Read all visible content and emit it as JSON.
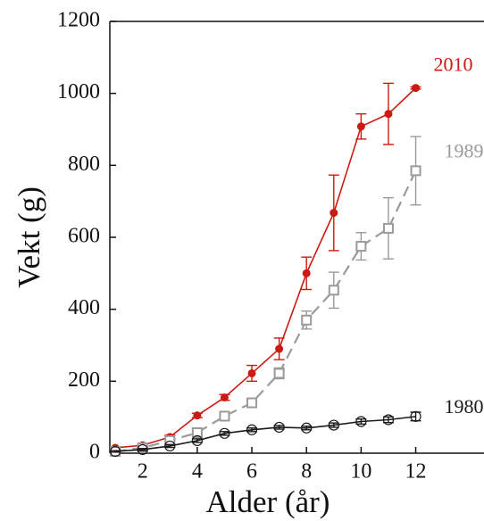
{
  "chart_data": {
    "type": "line",
    "x_label": "Alder (år)",
    "y_label": "Vekt (g)",
    "x": [
      1,
      2,
      3,
      4,
      5,
      6,
      7,
      8,
      9,
      10,
      11,
      12
    ],
    "series": [
      {
        "name": "2010",
        "color": "#cc1a12",
        "marker": "filled-circle",
        "dash": false,
        "values": [
          15,
          22,
          45,
          105,
          155,
          222,
          290,
          500,
          668,
          908,
          943,
          1015
        ],
        "errors": [
          3,
          4,
          5,
          6,
          8,
          22,
          30,
          45,
          105,
          35,
          85,
          3
        ]
      },
      {
        "name": "1989",
        "color": "#9a9a9a",
        "marker": "open-square",
        "dash": true,
        "values": [
          5,
          15,
          35,
          57,
          103,
          140,
          222,
          370,
          453,
          575,
          625,
          785
        ],
        "errors": [
          2,
          3,
          5,
          6,
          8,
          10,
          15,
          25,
          50,
          38,
          85,
          95
        ]
      },
      {
        "name": "1980",
        "color": "#1a1a1a",
        "marker": "open-circle",
        "dash": false,
        "values": [
          5,
          10,
          20,
          35,
          55,
          65,
          72,
          70,
          78,
          88,
          93,
          102
        ],
        "errors": [
          2,
          3,
          4,
          5,
          5,
          5,
          5,
          5,
          6,
          7,
          8,
          12
        ]
      }
    ],
    "xlim": [
      0.8,
      14.5
    ],
    "xticks": [
      2,
      4,
      6,
      8,
      10,
      12
    ],
    "ylim": [
      0,
      1200
    ],
    "yticks": [
      0,
      200,
      400,
      600,
      800,
      1000,
      1200
    ]
  }
}
